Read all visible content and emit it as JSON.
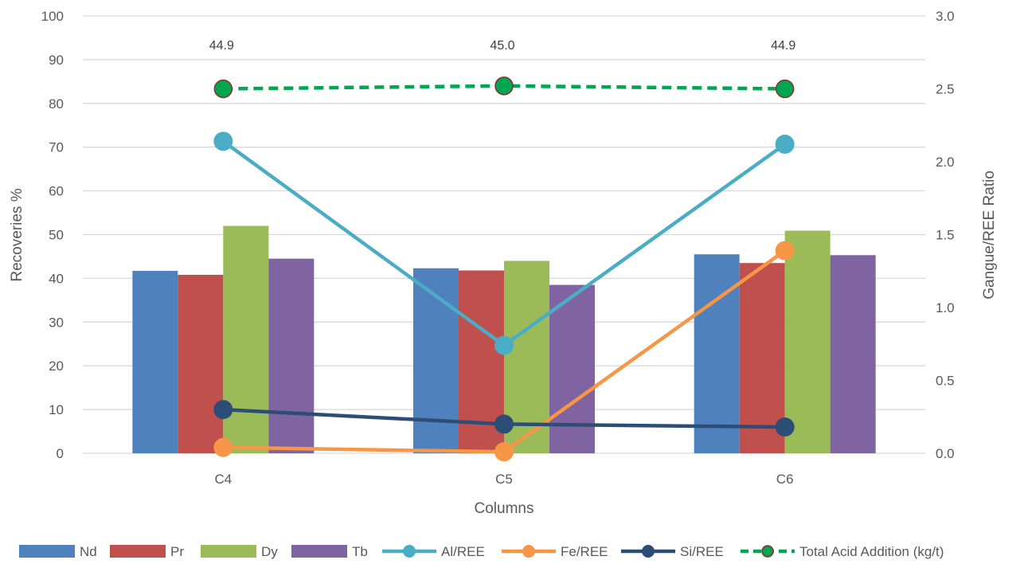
{
  "chart_data": {
    "type": "bar",
    "title": "",
    "xlabel": "Columns",
    "ylabel": "Recoveries %",
    "y2label": "Gangue/REE Ratio",
    "categories": [
      "C4",
      "C5",
      "C6"
    ],
    "ylim": [
      0,
      100
    ],
    "y2lim": [
      0,
      3
    ],
    "y_ticks": [
      "0",
      "10",
      "20",
      "30",
      "40",
      "50",
      "60",
      "70",
      "80",
      "90",
      "100"
    ],
    "y2_ticks": [
      "0.0",
      "0.5",
      "1.0",
      "1.5",
      "2.0",
      "2.5",
      "3.0"
    ],
    "grid": true,
    "legend_position": "bottom",
    "bar_series": [
      {
        "name": "Nd",
        "color": "#4F81BD",
        "values": [
          41.7,
          42.3,
          45.5
        ]
      },
      {
        "name": "Pr",
        "color": "#C0504D",
        "values": [
          40.8,
          41.8,
          43.5
        ]
      },
      {
        "name": "Dy",
        "color": "#9BBB59",
        "values": [
          52.0,
          44.0,
          50.9
        ]
      },
      {
        "name": "Tb",
        "color": "#8064A2",
        "values": [
          44.5,
          38.5,
          45.3
        ]
      }
    ],
    "line_series": [
      {
        "name": "Al/REE",
        "color": "#4BACC6",
        "axis": "secondary",
        "values": [
          2.14,
          0.74,
          2.12
        ]
      },
      {
        "name": "Fe/REE",
        "color": "#F79646",
        "axis": "secondary",
        "values": [
          0.04,
          0.01,
          1.39
        ]
      },
      {
        "name": "Si/REE",
        "color": "#2C4D75",
        "axis": "secondary",
        "values": [
          0.3,
          0.2,
          0.18
        ]
      }
    ],
    "acid_series": {
      "name": "Total Acid Addition (kg/t)",
      "color": "#00A651",
      "edge_color": "#8B2E2E",
      "axis": "secondary",
      "style": "dashed",
      "values": [
        2.5,
        2.52,
        2.5
      ],
      "labels": [
        "44.9",
        "45.0",
        "44.9"
      ]
    }
  }
}
